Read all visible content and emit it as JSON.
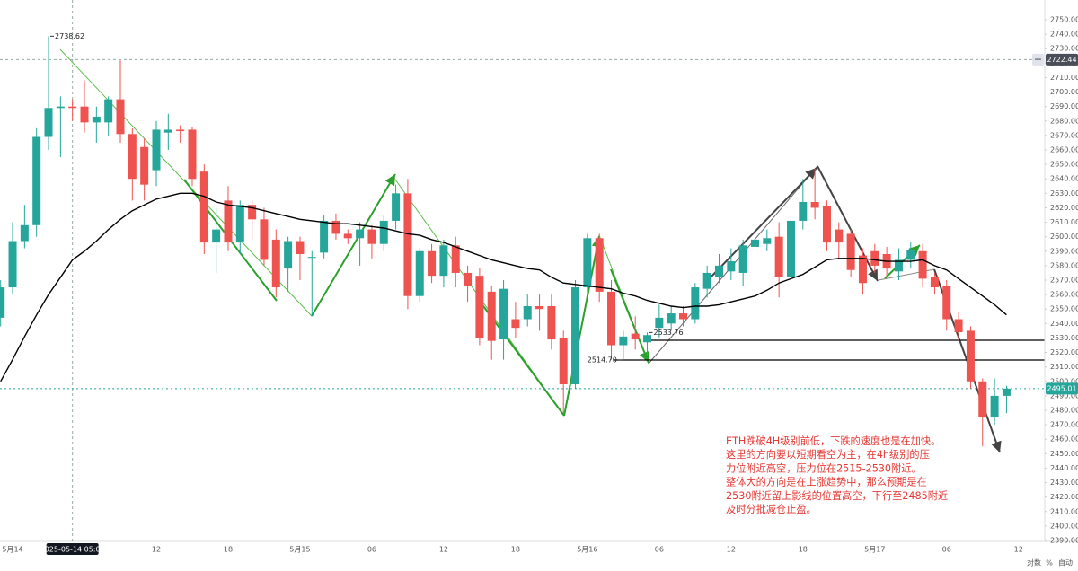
{
  "chart_data": {
    "type": "candlestick",
    "categories": [
      null,
      "5月14",
      null,
      null,
      null,
      null,
      "2025-05-14 05:00",
      null,
      null,
      null,
      null,
      null,
      null,
      "12",
      null,
      null,
      null,
      null,
      null,
      "18",
      null,
      null,
      null,
      null,
      null,
      "5月15",
      null,
      null,
      null,
      null,
      null,
      "06",
      null,
      null,
      null,
      null,
      null,
      "12",
      null,
      null,
      null,
      null,
      null,
      "18",
      null,
      null,
      null,
      null,
      null,
      "5月16",
      null,
      null,
      null,
      null,
      null,
      "06",
      null,
      null,
      null,
      null,
      null,
      "12",
      null,
      null,
      null,
      null,
      null,
      "18",
      null,
      null,
      null,
      null,
      null,
      "5月17",
      null,
      null,
      null,
      null,
      null,
      "06",
      null,
      null,
      null,
      null,
      null,
      "12"
    ],
    "open": [
      2544,
      2565,
      2597,
      2608,
      2669,
      2689,
      2690,
      2690,
      2679,
      2679,
      2695,
      2671,
      2662,
      2646,
      2672,
      2674,
      2674,
      2645,
      2596,
      2625,
      2596,
      2622,
      2612,
      2598,
      2578,
      2597,
      2586,
      2589,
      2611,
      2602,
      2599,
      2605,
      2595,
      2611,
      2630,
      2559,
      2590,
      2573,
      2594,
      2575,
      2573,
      2562,
      2529,
      2543,
      2543,
      2552,
      2552,
      2530,
      2498,
      2565,
      2599,
      2562,
      2525,
      2533,
      2527,
      2537,
      2540,
      2547,
      2543,
      2564,
      2572,
      2576,
      2575,
      2593,
      2595,
      2600,
      2572,
      2611,
      2624,
      2621,
      2605,
      2602,
      2587,
      2590,
      2588,
      2576,
      2584,
      2590,
      2572,
      2566,
      2543,
      2535,
      2500,
      2475,
      2490,
      null
    ],
    "high": [
      2570,
      2610,
      2622,
      2675,
      2738.62,
      2697,
      2695,
      2708,
      2690,
      2697,
      2722,
      2675,
      2668,
      2680,
      2685,
      2677,
      2676,
      2650,
      2620,
      2635,
      2625,
      2625,
      2620,
      2605,
      2600,
      2600,
      2590,
      2615,
      2616,
      2605,
      2610,
      2608,
      2615,
      2636,
      2640,
      2592,
      2595,
      2598,
      2600,
      2580,
      2578,
      2566,
      2570,
      2555,
      2560,
      2560,
      2560,
      2535,
      2570,
      2602,
      2602,
      2570,
      2535,
      2545,
      2533.76,
      2553,
      2552,
      2552,
      2568,
      2580,
      2588,
      2592,
      2598,
      2605,
      2605,
      2610,
      2615,
      2640,
      2647,
      2625,
      2610,
      2605,
      2592,
      2595,
      2593,
      2592,
      2596,
      2595,
      2575,
      2570,
      2548,
      2538,
      2502,
      2502,
      2497,
      null
    ],
    "low": [
      2538,
      2560,
      2592,
      2600,
      2660,
      2655,
      2680,
      2672,
      2665,
      2670,
      2665,
      2625,
      2625,
      2635,
      2660,
      2665,
      2635,
      2588,
      2575,
      2590,
      2588,
      2598,
      2580,
      2558,
      2562,
      2570,
      2545,
      2585,
      2598,
      2595,
      2580,
      2585,
      2590,
      2605,
      2550,
      2555,
      2568,
      2565,
      2565,
      2555,
      2525,
      2515,
      2515,
      2530,
      2538,
      2535,
      2522,
      2478,
      2495,
      2560,
      2555,
      2515,
      2514.7,
      2522,
      2518,
      2530,
      2535,
      2538,
      2540,
      2558,
      2568,
      2570,
      2566,
      2588,
      2590,
      2558,
      2568,
      2605,
      2612,
      2590,
      2585,
      2572,
      2560,
      2575,
      2572,
      2570,
      2578,
      2565,
      2560,
      2535,
      2528,
      2495,
      2455,
      2470,
      2478,
      null
    ],
    "close": [
      2565,
      2597,
      2608,
      2669,
      2689,
      2690,
      2689,
      2679,
      2683,
      2695,
      2671,
      2640,
      2636,
      2674,
      2674,
      2673,
      2640,
      2596,
      2605,
      2596,
      2622,
      2612,
      2584,
      2565,
      2597,
      2588,
      2586,
      2611,
      2602,
      2599,
      2605,
      2595,
      2611,
      2630,
      2559,
      2590,
      2573,
      2594,
      2575,
      2566,
      2530,
      2528,
      2564,
      2537,
      2552,
      2550,
      2529,
      2498,
      2565,
      2599,
      2562,
      2525,
      2531,
      2529,
      2532,
      2544,
      2547,
      2543,
      2565,
      2575,
      2580,
      2583,
      2594,
      2598,
      2599,
      2572,
      2611,
      2624,
      2620,
      2596,
      2596,
      2577,
      2568,
      2580,
      2578,
      2584,
      2591,
      2571,
      2565,
      2543,
      2534,
      2500,
      2475,
      2490,
      2495.01,
      null
    ],
    "ma": [
      2500,
      2515,
      2531,
      2546,
      2560,
      2572,
      2584,
      2590,
      2597,
      2605,
      2612,
      2618,
      2622,
      2626,
      2628,
      2630,
      2630,
      2628,
      2624,
      2622,
      2621,
      2620,
      2618,
      2616,
      2614,
      2612,
      2611,
      2610,
      2609,
      2609,
      2608,
      2607,
      2606,
      2604,
      2602,
      2601,
      2598,
      2596,
      2593,
      2590,
      2587,
      2584,
      2582,
      2580,
      2578,
      2577,
      2572,
      2568,
      2567,
      2566,
      2565,
      2564,
      2561,
      2559,
      2556,
      2554,
      2552,
      2551,
      2552,
      2552,
      2553,
      2555,
      2557,
      2559,
      2563,
      2568,
      2571,
      2574,
      2579,
      2584,
      2585,
      2585,
      2585,
      2584,
      2583,
      2583,
      2583,
      2584,
      2580,
      2577,
      2571,
      2565,
      2559,
      2553,
      2546,
      null
    ],
    "up_color": "#26a69a",
    "down_color": "#ef5350",
    "ma_color": "#000000",
    "ylim": [
      2390,
      2750
    ],
    "yticks": [
      {
        "value": 2390,
        "label": "2390.00"
      },
      {
        "value": 2400,
        "label": "2400.00"
      },
      {
        "value": 2410,
        "label": "2410.00"
      },
      {
        "value": 2420,
        "label": "2420.00"
      },
      {
        "value": 2430,
        "label": "2430.00"
      },
      {
        "value": 2440,
        "label": "2440.00"
      },
      {
        "value": 2450,
        "label": "2450.00"
      },
      {
        "value": 2460,
        "label": "2460.00"
      },
      {
        "value": 2470,
        "label": "2470.00"
      },
      {
        "value": 2480,
        "label": "2480.00"
      },
      {
        "value": 2490,
        "label": "2490.00"
      },
      {
        "value": 2500,
        "label": "2500.00"
      },
      {
        "value": 2510,
        "label": "2510.00"
      },
      {
        "value": 2520,
        "label": "2520.00"
      },
      {
        "value": 2530,
        "label": "2530.00"
      },
      {
        "value": 2540,
        "label": "2540.00"
      },
      {
        "value": 2550,
        "label": "2550.00"
      },
      {
        "value": 2560,
        "label": "2560.00"
      },
      {
        "value": 2570,
        "label": "2570.00"
      },
      {
        "value": 2580,
        "label": "2580.00"
      },
      {
        "value": 2590,
        "label": "2590.00"
      },
      {
        "value": 2600,
        "label": "2600.00"
      },
      {
        "value": 2610,
        "label": "2610.00"
      },
      {
        "value": 2620,
        "label": "2620.00"
      },
      {
        "value": 2630,
        "label": "2630.00"
      },
      {
        "value": 2640,
        "label": "2640.00"
      },
      {
        "value": 2650,
        "label": "2650.00"
      },
      {
        "value": 2660,
        "label": "2660.00"
      },
      {
        "value": 2670,
        "label": "2670.00"
      },
      {
        "value": 2680,
        "label": "2680.00"
      },
      {
        "value": 2690,
        "label": "2690.00"
      },
      {
        "value": 2700,
        "label": "2700.00"
      },
      {
        "value": 2710,
        "label": "2710.00"
      },
      {
        "value": 2720,
        "label": "2720.00"
      },
      {
        "value": 2730,
        "label": "2730.00"
      },
      {
        "value": 2740,
        "label": "2740.00"
      },
      {
        "value": 2750,
        "label": "2750.00"
      }
    ],
    "crosshair": {
      "category": 6,
      "price": 2722.44
    },
    "price_labels": [
      2738.62,
      {
        "value": 2514.7,
        "label": "2514.70"
      },
      2533.76
    ],
    "annotation": [
      "ETH跌破4H级别前低，下跌的速度也是在加快。",
      "这里的方向要以短期看空为主，在4h级别的压",
      "力位附近高空，压力位在2515-2530附近。",
      "整体大的方向是在上涨趋势中，那么预期是在",
      "2530附近留上影线的位置高空，下行至2485附近",
      "及时分批减仓止盈。"
    ],
    "scale_buttons": [
      "对数",
      "%",
      "自动"
    ]
  }
}
